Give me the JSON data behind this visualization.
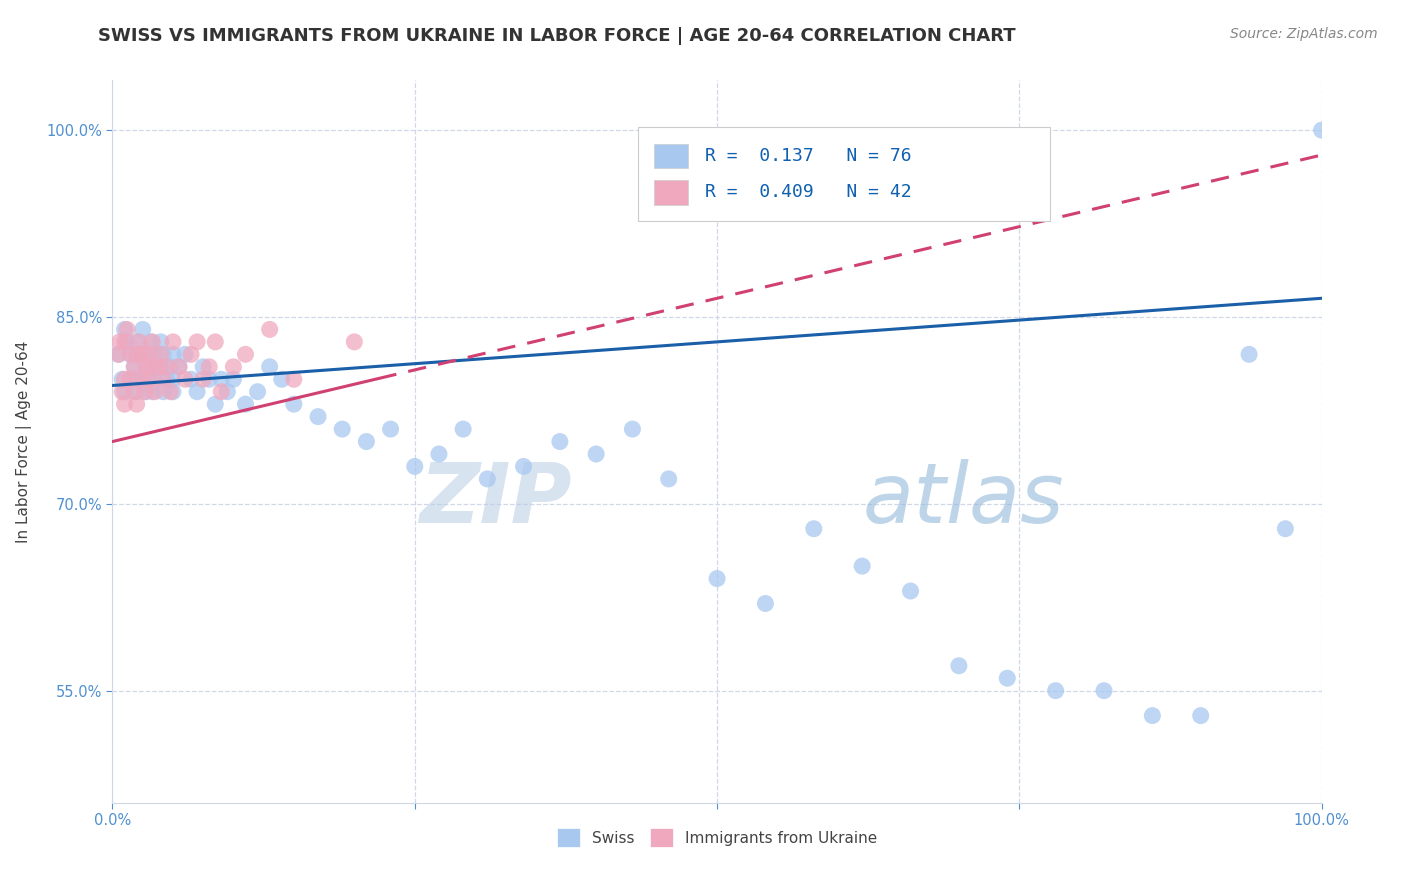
{
  "title": "SWISS VS IMMIGRANTS FROM UKRAINE IN LABOR FORCE | AGE 20-64 CORRELATION CHART",
  "source_text": "Source: ZipAtlas.com",
  "ylabel": "In Labor Force | Age 20-64",
  "watermark_zip": "ZIP",
  "watermark_atlas": "atlas",
  "xlim": [
    0.0,
    1.0
  ],
  "ylim": [
    0.46,
    1.04
  ],
  "xticks": [
    0.0,
    0.25,
    0.5,
    0.75,
    1.0
  ],
  "xticklabels": [
    "0.0%",
    "",
    "",
    "",
    "100.0%"
  ],
  "yticks": [
    0.55,
    0.7,
    0.85,
    1.0
  ],
  "yticklabels": [
    "55.0%",
    "70.0%",
    "85.0%",
    "100.0%"
  ],
  "swiss_R": 0.137,
  "swiss_N": 76,
  "ukraine_R": 0.409,
  "ukraine_N": 42,
  "swiss_color": "#a8c8f0",
  "ukraine_color": "#f0a8be",
  "swiss_line_color": "#1a5fa8",
  "ukraine_line_color": "#d04070",
  "tick_color": "#5090d0",
  "grid_color": "#d0d8e8",
  "background_color": "#ffffff",
  "swiss_x": [
    0.005,
    0.008,
    0.01,
    0.01,
    0.012,
    0.015,
    0.015,
    0.018,
    0.02,
    0.02,
    0.022,
    0.022,
    0.025,
    0.025,
    0.025,
    0.027,
    0.028,
    0.03,
    0.03,
    0.032,
    0.032,
    0.033,
    0.035,
    0.035,
    0.038,
    0.04,
    0.04,
    0.042,
    0.042,
    0.045,
    0.048,
    0.05,
    0.05,
    0.05,
    0.055,
    0.06,
    0.065,
    0.07,
    0.075,
    0.08,
    0.085,
    0.09,
    0.095,
    0.1,
    0.11,
    0.12,
    0.13,
    0.14,
    0.15,
    0.17,
    0.19,
    0.21,
    0.23,
    0.25,
    0.27,
    0.29,
    0.31,
    0.34,
    0.37,
    0.4,
    0.43,
    0.46,
    0.5,
    0.54,
    0.58,
    0.62,
    0.66,
    0.7,
    0.74,
    0.78,
    0.82,
    0.86,
    0.9,
    0.94,
    0.97,
    1.0
  ],
  "swiss_y": [
    0.82,
    0.8,
    0.84,
    0.79,
    0.83,
    0.82,
    0.8,
    0.81,
    0.83,
    0.79,
    0.82,
    0.8,
    0.82,
    0.84,
    0.8,
    0.79,
    0.81,
    0.82,
    0.8,
    0.81,
    0.83,
    0.79,
    0.82,
    0.8,
    0.81,
    0.83,
    0.81,
    0.79,
    0.82,
    0.8,
    0.81,
    0.79,
    0.82,
    0.8,
    0.81,
    0.82,
    0.8,
    0.79,
    0.81,
    0.8,
    0.78,
    0.8,
    0.79,
    0.8,
    0.78,
    0.79,
    0.81,
    0.8,
    0.78,
    0.77,
    0.76,
    0.75,
    0.76,
    0.73,
    0.74,
    0.76,
    0.72,
    0.73,
    0.75,
    0.74,
    0.76,
    0.72,
    0.64,
    0.62,
    0.68,
    0.65,
    0.63,
    0.57,
    0.56,
    0.55,
    0.55,
    0.53,
    0.53,
    0.82,
    0.68,
    1.0
  ],
  "ukraine_x": [
    0.005,
    0.006,
    0.008,
    0.01,
    0.01,
    0.01,
    0.012,
    0.015,
    0.015,
    0.018,
    0.018,
    0.02,
    0.02,
    0.022,
    0.025,
    0.025,
    0.027,
    0.028,
    0.03,
    0.03,
    0.032,
    0.033,
    0.035,
    0.038,
    0.04,
    0.042,
    0.045,
    0.048,
    0.05,
    0.055,
    0.06,
    0.065,
    0.07,
    0.075,
    0.08,
    0.085,
    0.09,
    0.1,
    0.11,
    0.13,
    0.15,
    0.2
  ],
  "ukraine_y": [
    0.82,
    0.83,
    0.79,
    0.83,
    0.8,
    0.78,
    0.84,
    0.8,
    0.82,
    0.81,
    0.79,
    0.82,
    0.78,
    0.83,
    0.8,
    0.82,
    0.79,
    0.81,
    0.82,
    0.8,
    0.81,
    0.83,
    0.79,
    0.81,
    0.82,
    0.8,
    0.81,
    0.79,
    0.83,
    0.81,
    0.8,
    0.82,
    0.83,
    0.8,
    0.81,
    0.83,
    0.79,
    0.81,
    0.82,
    0.84,
    0.8,
    0.83
  ],
  "title_fontsize": 13,
  "axis_label_fontsize": 11,
  "tick_fontsize": 10.5,
  "legend_fontsize": 13,
  "watermark_fontsize_zip": 60,
  "watermark_fontsize_atlas": 60,
  "source_fontsize": 10
}
